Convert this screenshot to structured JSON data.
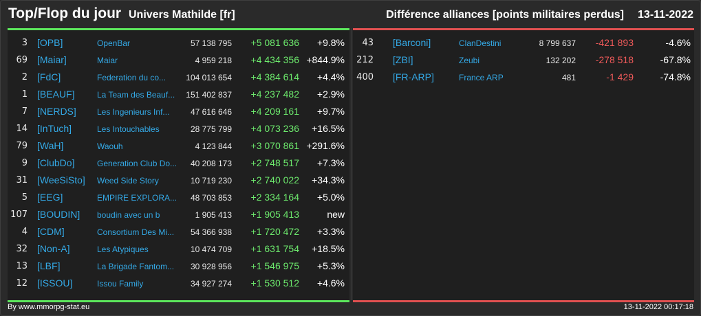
{
  "header": {
    "title": "Top/Flop du jour",
    "subtitle": "Univers Mathilde [fr]",
    "right_title": "Différence alliances [points militaires perdus]",
    "date": "13-11-2022"
  },
  "colors": {
    "gain": "#6dea6d",
    "loss": "#f05a5a",
    "link": "#34a9e6",
    "top_border": "#5ce65c",
    "flop_border": "#e05050"
  },
  "top": [
    {
      "rank": "3",
      "tag": "[OPB]",
      "name": "OpenBar",
      "points": "57 138 795",
      "diff": "+5 081 636",
      "pct": "+9.8%"
    },
    {
      "rank": "69",
      "tag": "[Maiar]",
      "name": "Maiar",
      "points": "4 959 218",
      "diff": "+4 434 356",
      "pct": "+844.9%"
    },
    {
      "rank": "2",
      "tag": "[FdC]",
      "name": "Federation du co...",
      "points": "104 013 654",
      "diff": "+4 384 614",
      "pct": "+4.4%"
    },
    {
      "rank": "1",
      "tag": "[BEAUF]",
      "name": "La Team des Beauf...",
      "points": "151 402 837",
      "diff": "+4 237 482",
      "pct": "+2.9%"
    },
    {
      "rank": "7",
      "tag": "[NERDS]",
      "name": "Les Ingenieurs Inf...",
      "points": "47 616 646",
      "diff": "+4 209 161",
      "pct": "+9.7%"
    },
    {
      "rank": "14",
      "tag": "[InTuch]",
      "name": "Les Intouchables",
      "points": "28 775 799",
      "diff": "+4 073 236",
      "pct": "+16.5%"
    },
    {
      "rank": "79",
      "tag": "[WaH]",
      "name": "Waouh",
      "points": "4 123 844",
      "diff": "+3 070 861",
      "pct": "+291.6%"
    },
    {
      "rank": "9",
      "tag": "[ClubDo]",
      "name": "Generation Club Do...",
      "points": "40 208 173",
      "diff": "+2 748 517",
      "pct": "+7.3%"
    },
    {
      "rank": "31",
      "tag": "[WeeSiSto]",
      "name": "Weed Side Story",
      "points": "10 719 230",
      "diff": "+2 740 022",
      "pct": "+34.3%"
    },
    {
      "rank": "5",
      "tag": "[EEG]",
      "name": "EMPIRE EXPLORA...",
      "points": "48 703 853",
      "diff": "+2 334 164",
      "pct": "+5.0%"
    },
    {
      "rank": "107",
      "tag": "[BOUDIN]",
      "name": "boudin avec un b",
      "points": "1 905 413",
      "diff": "+1 905 413",
      "pct": "new"
    },
    {
      "rank": "4",
      "tag": "[CDM]",
      "name": "Consortium Des Mi...",
      "points": "54 366 938",
      "diff": "+1 720 472",
      "pct": "+3.3%"
    },
    {
      "rank": "32",
      "tag": "[Non-A]",
      "name": "Les Atypiques",
      "points": "10 474 709",
      "diff": "+1 631 754",
      "pct": "+18.5%"
    },
    {
      "rank": "13",
      "tag": "[LBF]",
      "name": "La Brigade Fantom...",
      "points": "30 928 956",
      "diff": "+1 546 975",
      "pct": "+5.3%"
    },
    {
      "rank": "12",
      "tag": "[ISSOU]",
      "name": "Issou Family",
      "points": "34 927 274",
      "diff": "+1 530 512",
      "pct": "+4.6%"
    }
  ],
  "flop": [
    {
      "rank": "43",
      "tag": "[Barconi]",
      "name": "ClanDestini",
      "points": "8 799 637",
      "diff": "-421 893",
      "pct": "-4.6%"
    },
    {
      "rank": "212",
      "tag": "[ZBI]",
      "name": "Zeubi",
      "points": "132 202",
      "diff": "-278 518",
      "pct": "-67.8%"
    },
    {
      "rank": "400",
      "tag": "[FR-ARP]",
      "name": "France ARP",
      "points": "481",
      "diff": "-1 429",
      "pct": "-74.8%"
    }
  ],
  "footer": {
    "left": "By www.mmorpg-stat.eu",
    "right": "13-11-2022 00:17:18"
  }
}
